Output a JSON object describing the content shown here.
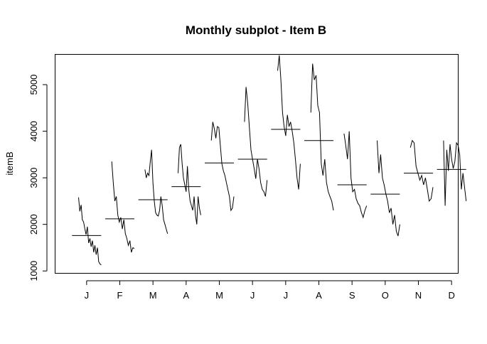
{
  "chart_data": {
    "type": "line",
    "title": "Monthly subplot - Item B",
    "xlabel": "",
    "ylabel": "itemB",
    "categories": [
      "J",
      "F",
      "M",
      "A",
      "M",
      "J",
      "J",
      "A",
      "S",
      "O",
      "N",
      "D"
    ],
    "yticks": [
      1000,
      2000,
      3000,
      4000,
      5000
    ],
    "ylim": [
      950,
      5650
    ],
    "grid": false,
    "legend": "none",
    "months": [
      {
        "label": "J",
        "mean": 1760,
        "values": [
          2580,
          2280,
          2420,
          2100,
          2050,
          1900,
          1780,
          1950,
          1600,
          1700,
          1520,
          1650,
          1400,
          1550,
          1350,
          1500,
          1200,
          1150,
          1130
        ]
      },
      {
        "label": "F",
        "mean": 2120,
        "values": [
          3350,
          2900,
          2500,
          2600,
          2200,
          2050,
          2150,
          1900,
          2100,
          1800,
          1700,
          1550,
          1650,
          1400,
          1500,
          1480
        ]
      },
      {
        "label": "M",
        "mean": 2530,
        "values": [
          3180,
          3000,
          3100,
          3050,
          3350,
          3600,
          2900,
          2500,
          2250,
          2200,
          2180,
          2300,
          2600,
          2400,
          2100,
          2000,
          1900,
          1800
        ]
      },
      {
        "label": "A",
        "mean": 2810,
        "values": [
          3100,
          3650,
          3720,
          3300,
          3000,
          2850,
          2700,
          3250,
          2750,
          2500,
          2400,
          2300,
          2600,
          2200,
          2000,
          2600,
          2350,
          2200
        ]
      },
      {
        "label": "M",
        "mean": 3320,
        "values": [
          3800,
          4200,
          4050,
          3850,
          4100,
          4080,
          3700,
          3300,
          3150,
          3050,
          2900,
          2750,
          2600,
          2300,
          2350,
          2600
        ]
      },
      {
        "label": "J",
        "mean": 3400,
        "values": [
          4200,
          4950,
          4600,
          4100,
          3600,
          3400,
          3200,
          2980,
          3400,
          3200,
          2900,
          2750,
          2700,
          2600,
          2950
        ]
      },
      {
        "label": "J",
        "mean": 4040,
        "values": [
          5300,
          5630,
          5100,
          4400,
          4100,
          3900,
          4350,
          4100,
          4200,
          4000,
          3750,
          3400,
          3000,
          2750,
          3300
        ]
      },
      {
        "label": "A",
        "mean": 3800,
        "values": [
          4400,
          5450,
          5100,
          5200,
          4550,
          4400,
          3300,
          3050,
          3400,
          2900,
          2700,
          2600,
          2500,
          2300
        ]
      },
      {
        "label": "S",
        "mean": 2850,
        "values": [
          3950,
          3700,
          3400,
          4000,
          3000,
          2700,
          2750,
          2550,
          2450,
          2400,
          2250,
          2150,
          2300,
          2400
        ]
      },
      {
        "label": "O",
        "mean": 2650,
        "values": [
          3800,
          3100,
          3500,
          3000,
          2850,
          2650,
          2500,
          2250,
          2350,
          2000,
          2200,
          1850,
          1750,
          2000
        ]
      },
      {
        "label": "N",
        "mean": 3100,
        "values": [
          3650,
          3800,
          3750,
          3250,
          3100,
          2950,
          3050,
          2850,
          3000,
          2750,
          2500,
          2550,
          2800
        ]
      },
      {
        "label": "D",
        "mean": 3180,
        "values": [
          3800,
          2400,
          3600,
          3150,
          3720,
          3400,
          3200,
          3350,
          3750,
          3700,
          3500,
          2750,
          3100,
          2800,
          2500
        ]
      }
    ]
  }
}
